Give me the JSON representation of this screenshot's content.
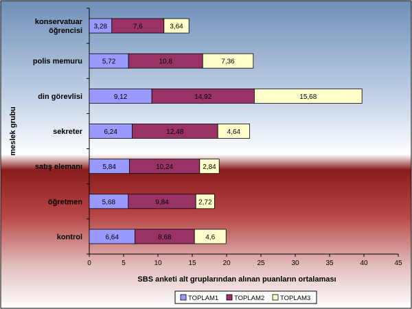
{
  "chart_data": {
    "type": "bar",
    "orientation": "horizontal",
    "stacked": true,
    "categories": [
      "konservatuar\nöğrencisi",
      "polis memuru",
      "din görevlisi",
      "sekreter",
      "satış elemanı",
      "öğretmen",
      "kontrol"
    ],
    "series": [
      {
        "name": "TOPLAM1",
        "color": "#9999ff",
        "values": [
          3.28,
          5.72,
          9.12,
          6.24,
          5.84,
          5.68,
          6.64
        ],
        "labels": [
          "3,28",
          "5,72",
          "9,12",
          "6,24",
          "5,84",
          "5,68",
          "6,64"
        ]
      },
      {
        "name": "TOPLAM2",
        "color": "#993366",
        "values": [
          7.6,
          10.8,
          14.92,
          12.48,
          10.24,
          9.84,
          8.68
        ],
        "labels": [
          "7,6",
          "10,8",
          "14,92",
          "12,48",
          "10,24",
          "9,84",
          "8,68"
        ]
      },
      {
        "name": "TOPLAM3",
        "color": "#ffffcc",
        "values": [
          3.64,
          7.36,
          15.68,
          4.64,
          2.84,
          2.72,
          4.6
        ],
        "labels": [
          "3,64",
          "7,36",
          "15,68",
          "4,64",
          "2,84",
          "2,72",
          "4,6"
        ]
      }
    ],
    "xlabel": "SBS anketi alt gruplarından alınan puanların ortalaması",
    "ylabel": "meslek grubu",
    "xlim": [
      0,
      45
    ],
    "xticks": [
      0,
      5,
      10,
      15,
      20,
      25,
      30,
      35,
      40,
      45
    ],
    "legend_position": "bottom",
    "grid": false,
    "background": {
      "top": "#6f8fb8",
      "middle": "#ffffff",
      "bottom": "#9c2424"
    }
  }
}
